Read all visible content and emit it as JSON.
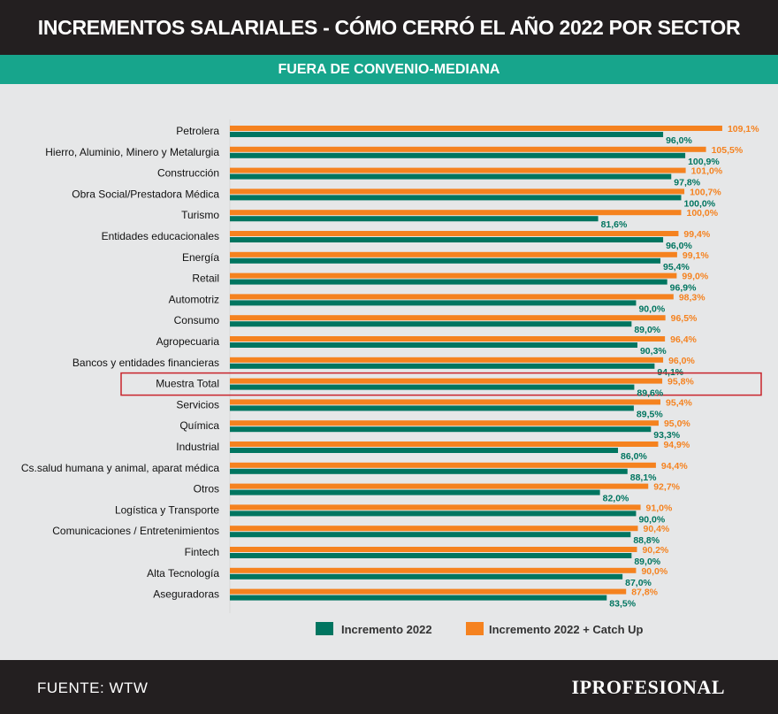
{
  "header": {
    "title": "INCREMENTOS SALARIALES - CÓMO CERRÓ EL AÑO 2022 POR SECTOR",
    "subtitle": "FUERA DE CONVENIO-MEDIANA"
  },
  "footer": {
    "source": "FUENTE: WTW",
    "logo": "IPROFESIONAL"
  },
  "colors": {
    "green": "#007560",
    "orange": "#f5821f",
    "highlight": "#c8242b"
  },
  "chart_data": {
    "type": "bar",
    "orientation": "horizontal",
    "xlim": [
      0,
      112
    ],
    "grid": false,
    "legend_position": "bottom",
    "highlighted_category": "Muestra Total",
    "categories": [
      "Petrolera",
      "Hierro, Aluminio, Minero y Metalurgia",
      "Construcción",
      "Obra Social/Prestadora Médica",
      "Turismo",
      "Entidades educacionales",
      "Energía",
      "Retail",
      "Automotriz",
      "Consumo",
      "Agropecuaria",
      "Bancos y entidades financieras",
      "Muestra Total",
      "Servicios",
      "Química",
      "Industrial",
      "Cs.salud humana y animal, aparat médica",
      "Otros",
      "Logística y Transporte",
      "Comunicaciones / Entretenimientos",
      "Fintech",
      "Alta Tecnología",
      "Aseguradoras"
    ],
    "series": [
      {
        "name": "Incremento 2022 + Catch Up",
        "color": "#f5821f",
        "values": [
          109.1,
          105.5,
          101.0,
          100.7,
          100.0,
          99.4,
          99.1,
          99.0,
          98.3,
          96.5,
          96.4,
          96.0,
          95.8,
          95.4,
          95.0,
          94.9,
          94.4,
          92.7,
          91.0,
          90.4,
          90.2,
          90.0,
          87.8
        ],
        "labels": [
          "109,1%",
          "105,5%",
          "101,0%",
          "100,7%",
          "100,0%",
          "99,4%",
          "99,1%",
          "99,0%",
          "98,3%",
          "96,5%",
          "96,4%",
          "96,0%",
          "95,8%",
          "95,4%",
          "95,0%",
          "94,9%",
          "94,4%",
          "92,7%",
          "91,0%",
          "90,4%",
          "90,2%",
          "90,0%",
          "87,8%"
        ]
      },
      {
        "name": "Incremento 2022",
        "color": "#007560",
        "values": [
          96.0,
          100.9,
          97.8,
          100.0,
          81.6,
          96.0,
          95.4,
          96.9,
          90.0,
          89.0,
          90.3,
          94.1,
          89.6,
          89.5,
          93.3,
          86.0,
          88.1,
          82.0,
          90.0,
          88.8,
          89.0,
          87.0,
          83.5
        ],
        "labels": [
          "96,0%",
          "100,9%",
          "97,8%",
          "100,0%",
          "81,6%",
          "96,0%",
          "95,4%",
          "96,9%",
          "90,0%",
          "89,0%",
          "90,3%",
          "94,1%",
          "89,6%",
          "89,5%",
          "93,3%",
          "86,0%",
          "88,1%",
          "82,0%",
          "90,0%",
          "88,8%",
          "89,0%",
          "87,0%",
          "83,5%"
        ]
      }
    ],
    "legend": [
      "Incremento 2022",
      "Incremento 2022 + Catch Up"
    ]
  }
}
